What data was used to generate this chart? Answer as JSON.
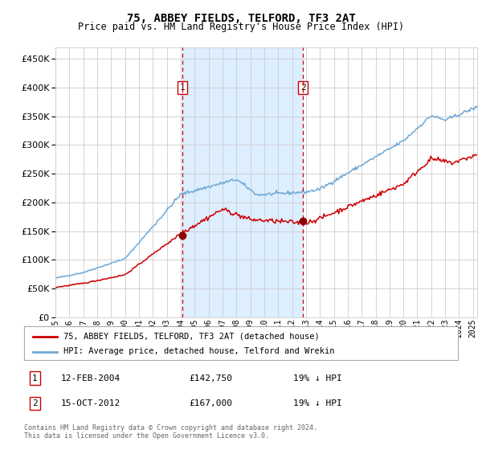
{
  "title": "75, ABBEY FIELDS, TELFORD, TF3 2AT",
  "subtitle": "Price paid vs. HM Land Registry's House Price Index (HPI)",
  "legend_line1": "75, ABBEY FIELDS, TELFORD, TF3 2AT (detached house)",
  "legend_line2": "HPI: Average price, detached house, Telford and Wrekin",
  "annotation1_date": "12-FEB-2004",
  "annotation1_price": "£142,750",
  "annotation1_hpi": "19% ↓ HPI",
  "annotation2_date": "15-OCT-2012",
  "annotation2_price": "£167,000",
  "annotation2_hpi": "19% ↓ HPI",
  "footer": "Contains HM Land Registry data © Crown copyright and database right 2024.\nThis data is licensed under the Open Government Licence v3.0.",
  "hpi_color": "#6fa8d4",
  "price_color": "#cc0000",
  "marker_color": "#8b0000",
  "shade_color": "#ddeeff",
  "vline_color": "#cc0000",
  "grid_color": "#cccccc",
  "bg_color": "#ffffff",
  "ylim": [
    0,
    470000
  ],
  "yticks": [
    0,
    50000,
    100000,
    150000,
    200000,
    250000,
    300000,
    350000,
    400000,
    450000
  ],
  "event1_x": 2004.11,
  "event1_y": 142750,
  "event2_x": 2012.79,
  "event2_y": 167000,
  "xmin": 1995,
  "xmax": 2025.3
}
